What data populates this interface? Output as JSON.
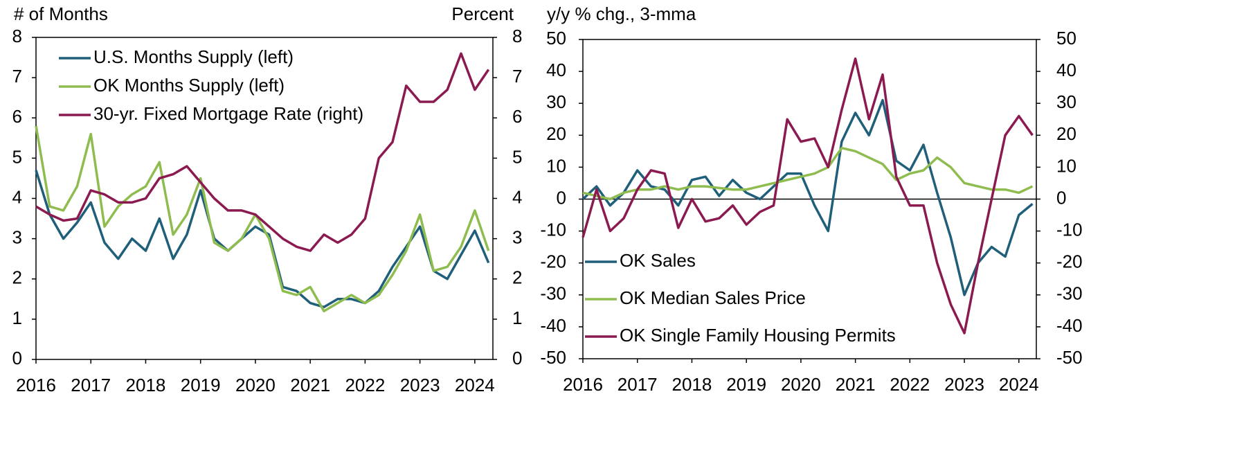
{
  "chart_data": [
    {
      "type": "line",
      "y_label": "# of Months",
      "y2_label": "Percent",
      "legend": "upper left",
      "x": [
        2016,
        2016.25,
        2016.5,
        2016.75,
        2017,
        2017.25,
        2017.5,
        2017.75,
        2018,
        2018.25,
        2018.5,
        2018.75,
        2019,
        2019.25,
        2019.5,
        2019.75,
        2020,
        2020.25,
        2020.5,
        2020.75,
        2021,
        2021.25,
        2021.5,
        2021.75,
        2022,
        2022.25,
        2022.5,
        2022.75,
        2023,
        2023.25,
        2023.5,
        2023.75,
        2024,
        2024.25
      ],
      "series": [
        {
          "name": "U.S. Months Supply (left)",
          "color": "#1f5f7a",
          "values": [
            4.7,
            3.6,
            3.0,
            3.4,
            3.9,
            2.9,
            2.5,
            3.0,
            2.7,
            3.5,
            2.5,
            3.1,
            4.2,
            3.0,
            2.7,
            3.0,
            3.3,
            3.1,
            1.8,
            1.7,
            1.4,
            1.3,
            1.5,
            1.5,
            1.4,
            1.7,
            2.3,
            2.8,
            3.3,
            2.2,
            2.0,
            2.6,
            3.2,
            2.4
          ]
        },
        {
          "name": "OK Months Supply (left)",
          "color": "#8fbc4f",
          "values": [
            5.8,
            3.8,
            3.7,
            4.3,
            5.6,
            3.3,
            3.8,
            4.1,
            4.3,
            4.9,
            3.1,
            3.6,
            4.5,
            2.9,
            2.7,
            3.0,
            3.6,
            3.0,
            1.7,
            1.6,
            1.8,
            1.2,
            1.4,
            1.6,
            1.4,
            1.6,
            2.1,
            2.7,
            3.6,
            2.2,
            2.3,
            2.8,
            3.7,
            2.7
          ]
        },
        {
          "name": "30-yr. Fixed Mortgage Rate (right)",
          "color": "#8b1a50",
          "axis": "y2",
          "values": [
            3.8,
            3.6,
            3.45,
            3.5,
            4.2,
            4.1,
            3.9,
            3.9,
            4.0,
            4.5,
            4.6,
            4.8,
            4.4,
            4.0,
            3.7,
            3.7,
            3.6,
            3.3,
            3.0,
            2.8,
            2.7,
            3.1,
            2.9,
            3.1,
            3.5,
            5.0,
            5.4,
            6.8,
            6.4,
            6.4,
            6.7,
            7.6,
            6.7,
            7.2
          ]
        }
      ],
      "xlim": [
        2016,
        2024.33
      ],
      "xticks": [
        2016,
        2017,
        2018,
        2019,
        2020,
        2021,
        2022,
        2023,
        2024
      ],
      "ylim": [
        0,
        8
      ],
      "yticks": [
        0,
        1,
        2,
        3,
        4,
        5,
        6,
        7,
        8
      ],
      "y2lim": [
        0,
        8
      ],
      "y2ticks": [
        0,
        1,
        2,
        3,
        4,
        5,
        6,
        7,
        8
      ]
    },
    {
      "type": "line",
      "y_label": "y/y % chg., 3-mma",
      "legend": "lower left",
      "x": [
        2016,
        2016.25,
        2016.5,
        2016.75,
        2017,
        2017.25,
        2017.5,
        2017.75,
        2018,
        2018.25,
        2018.5,
        2018.75,
        2019,
        2019.25,
        2019.5,
        2019.75,
        2020,
        2020.25,
        2020.5,
        2020.75,
        2021,
        2021.25,
        2021.5,
        2021.75,
        2022,
        2022.25,
        2022.5,
        2022.75,
        2023,
        2023.25,
        2023.5,
        2023.75,
        2024,
        2024.25
      ],
      "series": [
        {
          "name": "OK Sales",
          "color": "#1f5f7a",
          "values": [
            0,
            4,
            -2,
            2,
            9,
            4,
            3,
            -2,
            6,
            7,
            1,
            6,
            2,
            0,
            4,
            8,
            8,
            -2,
            -10,
            18,
            27,
            20,
            31,
            12,
            9,
            17,
            2,
            -12,
            -30,
            -20,
            -15,
            -18,
            -5,
            -1.5
          ]
        },
        {
          "name": "OK Median Sales Price",
          "color": "#8fbc4f",
          "values": [
            2,
            1,
            0,
            2,
            3,
            3,
            4,
            3,
            4,
            4,
            3.5,
            3,
            3,
            4,
            5,
            6,
            7,
            8,
            10,
            16,
            15,
            13,
            11,
            6,
            8,
            9,
            13,
            10,
            5,
            4,
            3,
            3,
            2,
            4
          ]
        },
        {
          "name": "OK Single Family Housing Permits",
          "color": "#8b1a50",
          "values": [
            -12,
            3,
            -10,
            -6,
            3,
            9,
            8,
            -9,
            0,
            -7,
            -6,
            -2,
            -8,
            -4,
            -2,
            25,
            18,
            19,
            10,
            28,
            44,
            25,
            39,
            7,
            -2,
            -2,
            -20,
            -33,
            -42,
            -20,
            0,
            20,
            26,
            20
          ]
        }
      ],
      "xlim": [
        2016,
        2024.32
      ],
      "xticks": [
        2016,
        2017,
        2018,
        2019,
        2020,
        2021,
        2022,
        2023,
        2024
      ],
      "ylim": [
        -50,
        50
      ],
      "yticks": [
        -50,
        -40,
        -30,
        -20,
        -10,
        0,
        10,
        20,
        30,
        40,
        50
      ],
      "y2lim": [
        -50,
        50
      ],
      "y2ticks": [
        -50,
        -40,
        -30,
        -20,
        -10,
        0,
        10,
        20,
        30,
        40,
        50
      ]
    }
  ]
}
